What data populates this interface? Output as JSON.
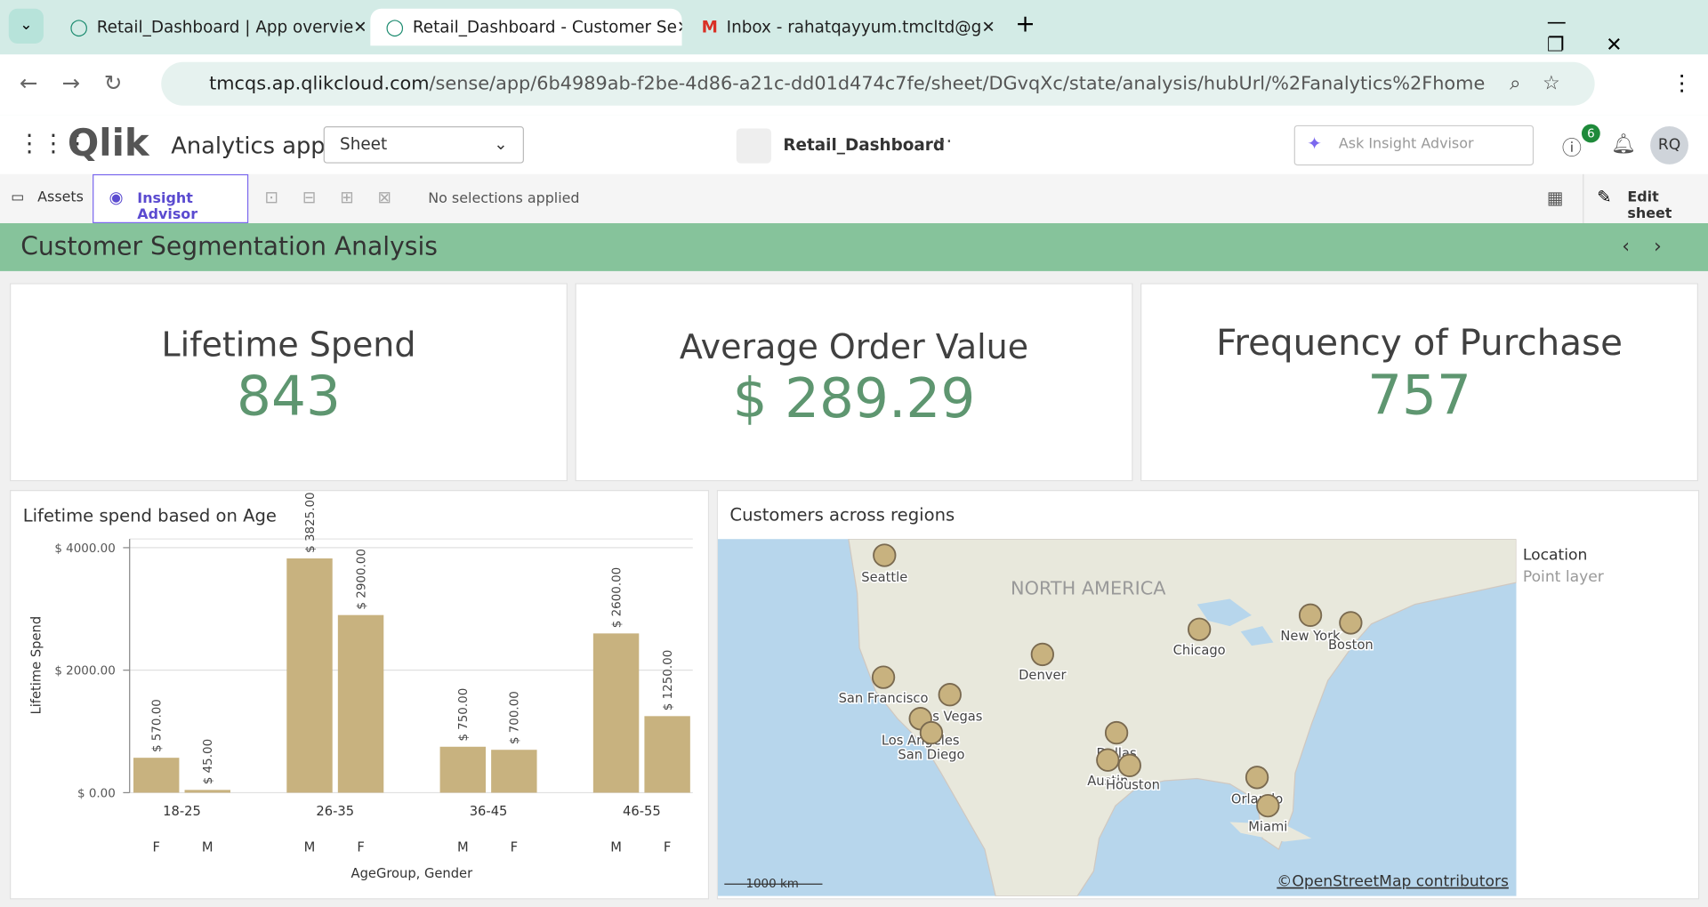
{
  "browser": {
    "tabs": [
      "Retail_Dashboard | App overvie",
      "Retail_Dashboard - Customer Se",
      "Inbox - rahatqayyum.tmcltd@g"
    ],
    "url_host": "tmcqs.ap.qlikcloud.com",
    "url_path": "/sense/app/6b4989ab-f2be-4d86-a21c-dd01d474c7fe/sheet/DGvqXc/state/analysis/hubUrl/%2Fanalytics%2Fhome"
  },
  "app": {
    "logo": "Qlik",
    "section": "Analytics app",
    "sheet_select": "Sheet",
    "app_name": "Retail_Dashboard",
    "search_placeholder": "Ask Insight Advisor",
    "help_badge": "6",
    "avatar": "RQ"
  },
  "toolbar": {
    "assets": "Assets",
    "insight_advisor": "Insight Advisor",
    "selections": "No selections applied",
    "edit_sheet": "Edit sheet"
  },
  "sheet_title": "Customer Segmentation Analysis",
  "kpis": [
    {
      "label": "Lifetime Spend",
      "value": "843"
    },
    {
      "label": "Average Order Value",
      "value": "$ 289.29"
    },
    {
      "label": "Frequency of Purchase",
      "value": "757"
    }
  ],
  "chart_data": {
    "type": "bar",
    "title": "Lifetime spend based on Age",
    "y_label": "Lifetime Spend",
    "x_label": "AgeGroup, Gender",
    "groups": [
      "18-25",
      "26-35",
      "36-45",
      "46-55"
    ],
    "categories": [
      "F",
      "M",
      "M",
      "F",
      "M",
      "F",
      "M",
      "F"
    ],
    "values": [
      570,
      45,
      3825,
      2900,
      750,
      700,
      2600,
      1250
    ],
    "value_labels": [
      "$ 570.00",
      "$ 45.00",
      "$ 3825.00",
      "$ 2900.00",
      "$ 750.00",
      "$ 700.00",
      "$ 2600.00",
      "$ 1250.00"
    ],
    "color": "#c8b27f",
    "ylim": [
      0,
      4000
    ],
    "yticks": [
      {
        "value": 0,
        "label": "$ 0.00"
      },
      {
        "value": 2000,
        "label": "$ 2000.00"
      },
      {
        "value": 4000,
        "label": "$ 4000.00"
      }
    ],
    "grid": true
  },
  "map": {
    "title": "Customers across regions",
    "region_label": "NORTH AMERICA",
    "cities": [
      "Seattle",
      "San Francisco",
      "Las Vegas",
      "Los Angeles",
      "San Diego",
      "Denver",
      "Dallas",
      "Austin",
      "Houston",
      "Chicago",
      "New York",
      "Boston",
      "Orlando",
      "Miami"
    ],
    "legend_title": "Location",
    "legend_subtitle": "Point layer",
    "scale": "1000 km",
    "attribution": "©OpenStreetMap contributors"
  }
}
